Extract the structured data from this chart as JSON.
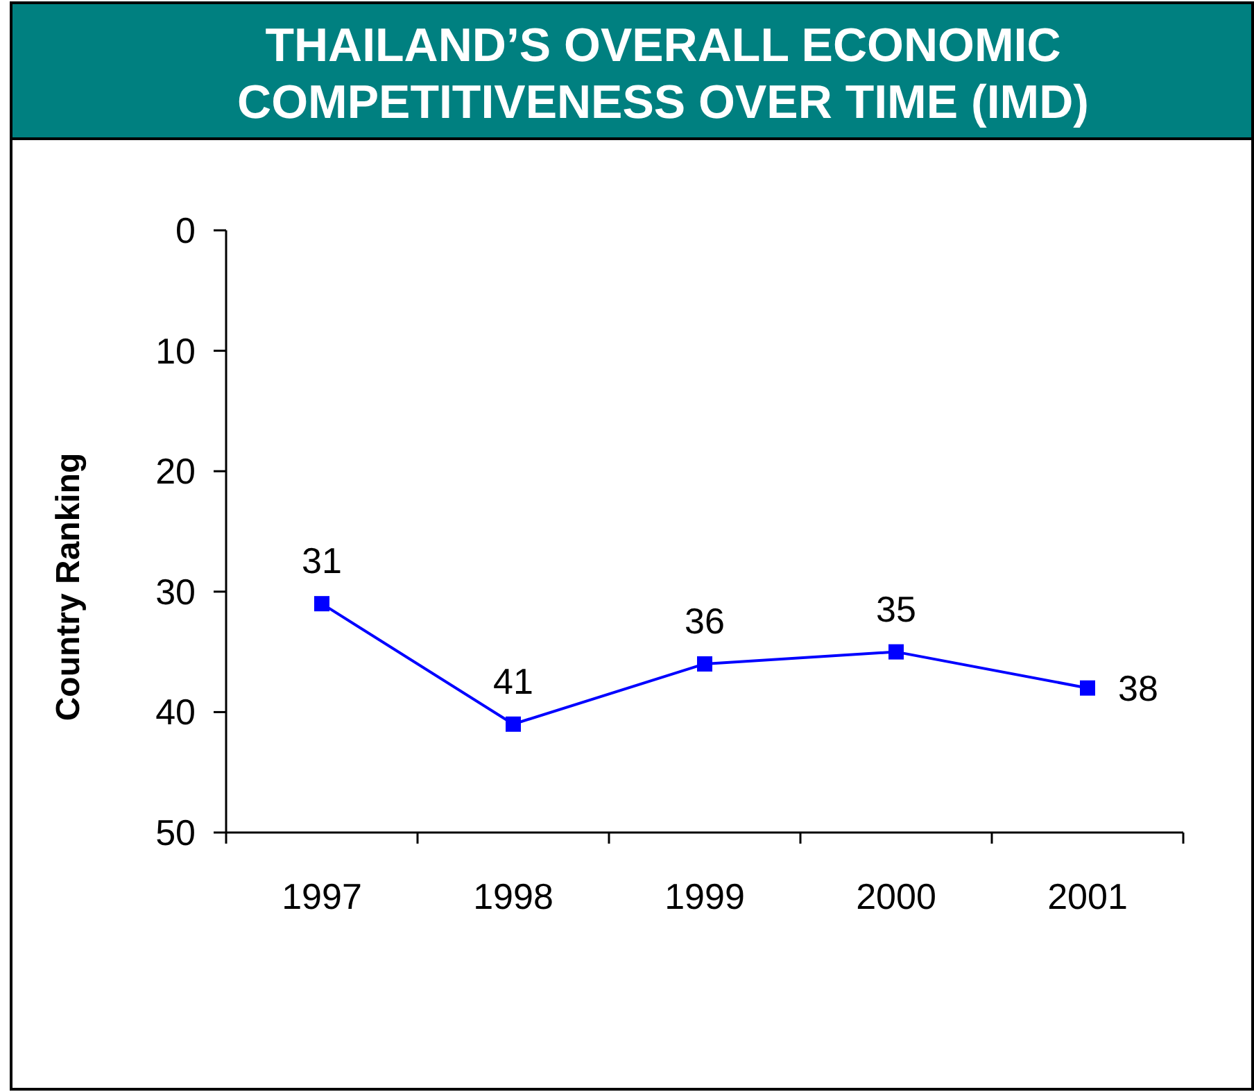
{
  "chart_data": {
    "type": "line",
    "title": "THAILAND’S OVERALL ECONOMIC COMPETITIVENESS OVER TIME (IMD)",
    "ylabel": "Country Ranking",
    "categories": [
      "1997",
      "1998",
      "1999",
      "2000",
      "2001"
    ],
    "series": [
      {
        "color": "#0000ff",
        "values": [
          31,
          41,
          36,
          35,
          38
        ]
      }
    ],
    "ylim": [
      50,
      0
    ],
    "yticks": [
      0,
      10,
      20,
      30,
      40,
      50
    ],
    "marker": "square",
    "data_labels": true
  }
}
